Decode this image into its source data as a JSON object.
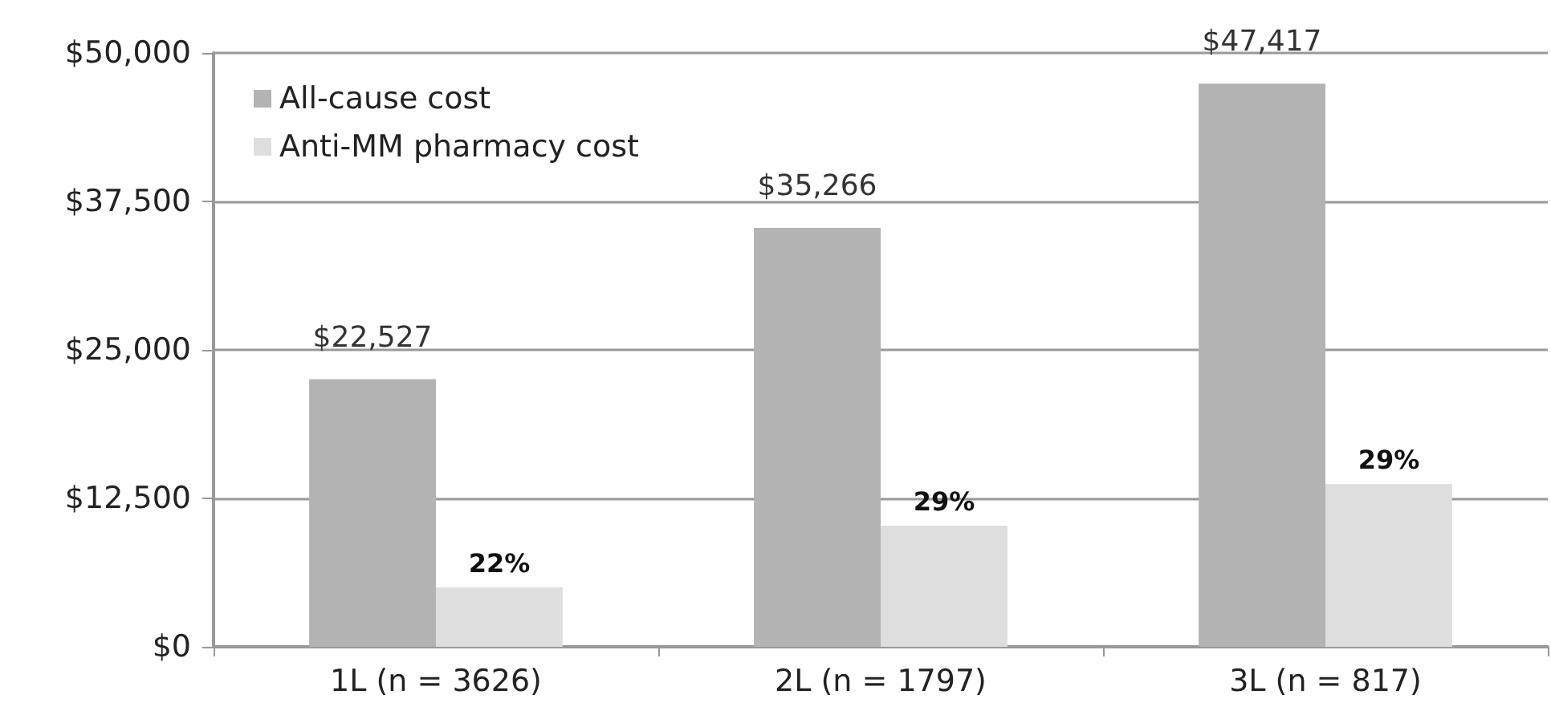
{
  "chart_data": {
    "type": "bar",
    "categories": [
      "1L (n = 3626)",
      "2L (n = 1797)",
      "3L (n = 817)"
    ],
    "series": [
      {
        "name": "All-cause cost",
        "color": "#b3b3b3",
        "values": [
          22527,
          35266,
          47417
        ],
        "value_labels": [
          "$22,527",
          "$35,266",
          "$47,417"
        ]
      },
      {
        "name": "Anti-MM pharmacy cost",
        "color": "#dedede",
        "values": [
          5000,
          10200,
          13700
        ]
      }
    ],
    "annotations": [
      {
        "text": "22%",
        "x": "1L (n = 3626)",
        "y": 5000
      },
      {
        "text": "29%",
        "x": "2L (n = 1797)",
        "y": 10200
      },
      {
        "text": "29%",
        "x": "3L (n = 817)",
        "y": 13700
      }
    ],
    "ylim": [
      0,
      50000
    ],
    "yticks": [
      {
        "value": 0,
        "label": "$0"
      },
      {
        "value": 12500,
        "label": "$12,500"
      },
      {
        "value": 25000,
        "label": "$25,000"
      },
      {
        "value": 37500,
        "label": "$37,500"
      },
      {
        "value": 50000,
        "label": "$50,000"
      }
    ],
    "grid": "y",
    "legend": "top left"
  }
}
